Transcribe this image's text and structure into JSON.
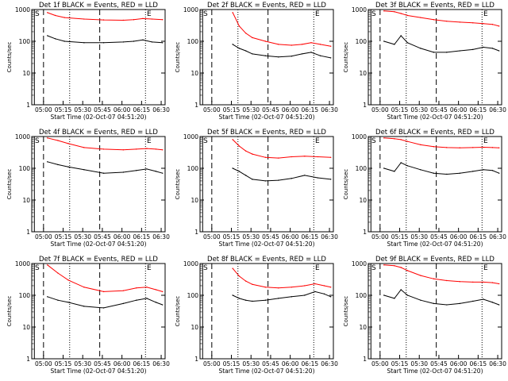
{
  "chart_data": {
    "type": "line",
    "shared": {
      "ylabel": "Counts/sec",
      "xlabel": "Start Time (02-Oct-07 04:51:20)",
      "xticks": [
        "05:00",
        "05:15",
        "05:30",
        "05:45",
        "06:00",
        "06:15",
        "06:30"
      ],
      "yticks": [
        "1",
        "10",
        "100",
        "1000"
      ],
      "yscale": "log",
      "ylim": [
        1,
        1000
      ],
      "xlim_minutes_after_start": [
        0,
        102
      ],
      "series_colors": {
        "Events": "#000000",
        "LLD": "#ff0000"
      },
      "markers": {
        "start_label": "S",
        "end_label": "E"
      }
    },
    "panels": [
      {
        "title": "Det 1f BLACK = Events, RED = LLD",
        "x": [
          12,
          18,
          25,
          40,
          55,
          70,
          78,
          85,
          92,
          100
        ],
        "series": [
          {
            "color": "black",
            "values": [
              150,
              120,
              100,
              90,
              90,
              95,
              100,
              110,
              95,
              90
            ]
          },
          {
            "color": "red",
            "values": [
              800,
              650,
              560,
              500,
              470,
              460,
              480,
              520,
              500,
              480
            ]
          }
        ]
      },
      {
        "title": "Det 2f BLACK = Events, RED = LLD",
        "x": [
          25,
          30,
          35,
          40,
          50,
          60,
          70,
          78,
          85,
          92,
          100
        ],
        "series": [
          {
            "color": "black",
            "values": [
              80,
              60,
              50,
              40,
              35,
              32,
              34,
              40,
              45,
              35,
              30
            ]
          },
          {
            "color": "red",
            "values": [
              800,
              300,
              180,
              130,
              100,
              80,
              75,
              80,
              90,
              80,
              70
            ]
          }
        ]
      },
      {
        "title": "Det 3f BLACK = Events, RED = LLD",
        "x": [
          12,
          20,
          25,
          30,
          40,
          50,
          60,
          70,
          80,
          88,
          95,
          100
        ],
        "series": [
          {
            "color": "black",
            "values": [
              100,
              80,
              150,
              90,
              60,
              45,
              45,
              50,
              55,
              65,
              60,
              50
            ]
          },
          {
            "color": "red",
            "values": [
              900,
              850,
              750,
              650,
              560,
              480,
              430,
              400,
              380,
              360,
              340,
              300
            ]
          }
        ]
      },
      {
        "title": "Det 4f BLACK = Events, RED = LLD",
        "x": [
          12,
          20,
          28,
          40,
          55,
          70,
          80,
          88,
          95,
          100
        ],
        "series": [
          {
            "color": "black",
            "values": [
              160,
              130,
              110,
              90,
              70,
              75,
              85,
              95,
              80,
              70
            ]
          },
          {
            "color": "red",
            "values": [
              900,
              750,
              600,
              450,
              400,
              380,
              400,
              420,
              400,
              380
            ]
          }
        ]
      },
      {
        "title": "Det 5f BLACK = Events, RED = LLD",
        "x": [
          25,
          30,
          35,
          40,
          50,
          60,
          70,
          80,
          90,
          100
        ],
        "series": [
          {
            "color": "black",
            "values": [
              100,
              80,
              60,
              45,
              40,
              42,
              48,
              60,
              50,
              45
            ]
          },
          {
            "color": "red",
            "values": [
              800,
              500,
              350,
              280,
              220,
              210,
              230,
              240,
              230,
              220
            ]
          }
        ]
      },
      {
        "title": "Det 6f BLACK = Events, RED = LLD",
        "x": [
          12,
          20,
          25,
          30,
          40,
          50,
          60,
          70,
          80,
          88,
          95,
          100
        ],
        "series": [
          {
            "color": "black",
            "values": [
              100,
              80,
              150,
              120,
              90,
              70,
              65,
              70,
              80,
              90,
              85,
              70
            ]
          },
          {
            "color": "red",
            "values": [
              900,
              850,
              800,
              700,
              550,
              480,
              450,
              440,
              450,
              460,
              450,
              440
            ]
          }
        ]
      },
      {
        "title": "Det 7f BLACK = Events, RED = LLD",
        "x": [
          12,
          20,
          28,
          40,
          55,
          70,
          80,
          88,
          95,
          100
        ],
        "series": [
          {
            "color": "black",
            "values": [
              90,
              70,
              60,
              45,
              40,
              55,
              70,
              80,
              60,
              50
            ]
          },
          {
            "color": "red",
            "values": [
              900,
              500,
              300,
              180,
              130,
              140,
              170,
              180,
              150,
              130
            ]
          }
        ]
      },
      {
        "title": "Det 8f BLACK = Events, RED = LLD",
        "x": [
          25,
          30,
          35,
          40,
          50,
          60,
          70,
          80,
          88,
          95,
          100
        ],
        "series": [
          {
            "color": "black",
            "values": [
              100,
              80,
              70,
              65,
              70,
              80,
              90,
              100,
              130,
              110,
              90
            ]
          },
          {
            "color": "red",
            "values": [
              700,
              400,
              280,
              220,
              180,
              170,
              180,
              200,
              230,
              200,
              180
            ]
          }
        ]
      },
      {
        "title": "Det 9f BLACK = Events, RED = LLD",
        "x": [
          12,
          20,
          25,
          30,
          40,
          50,
          60,
          70,
          80,
          88,
          95,
          100
        ],
        "series": [
          {
            "color": "black",
            "values": [
              100,
              80,
              150,
              100,
              70,
              55,
              50,
              55,
              65,
              75,
              60,
              50
            ]
          },
          {
            "color": "red",
            "values": [
              900,
              850,
              750,
              600,
              420,
              330,
              290,
              270,
              260,
              260,
              250,
              230
            ]
          }
        ]
      }
    ]
  }
}
